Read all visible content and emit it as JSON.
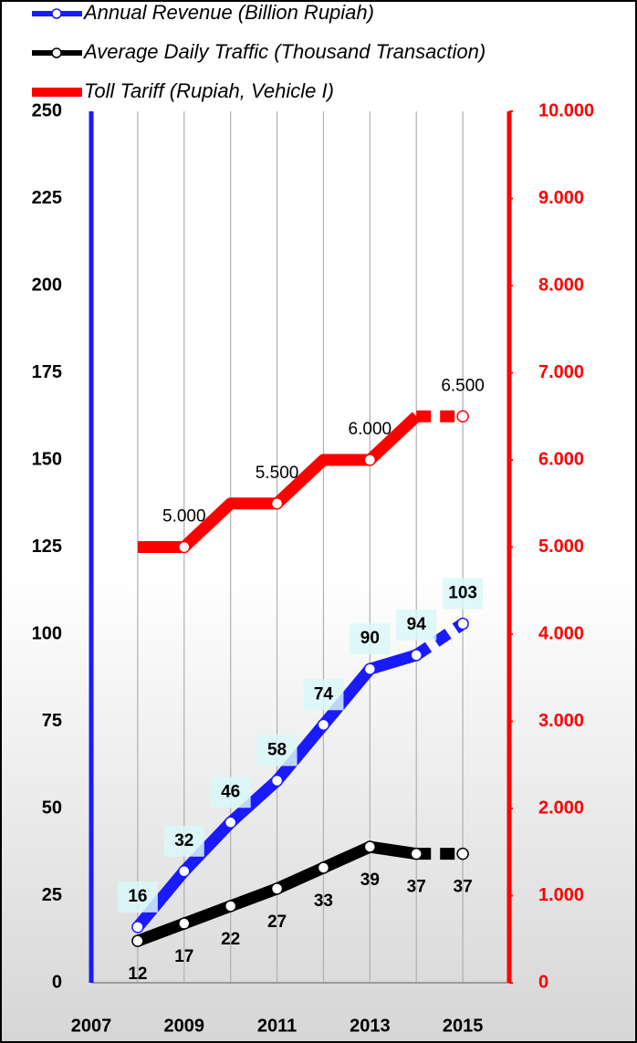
{
  "chart_data": {
    "type": "line",
    "x": [
      2008,
      2009,
      2010,
      2011,
      2012,
      2013,
      2014,
      2015
    ],
    "series": [
      {
        "name": "Annual Revenue (Billion Rupiah)",
        "color": "#1a1aff",
        "values": [
          16,
          32,
          46,
          58,
          74,
          90,
          94,
          103
        ]
      },
      {
        "name": "Average Daily Traffic (Thousand Transaction)",
        "color": "#000000",
        "values": [
          12,
          17,
          22,
          27,
          33,
          39,
          37,
          37
        ]
      },
      {
        "name": "Toll Tariff (Rupiah, Vehicle I)",
        "color": "#ff0000",
        "axis": "y2",
        "values": [
          5000,
          5000,
          5500,
          5500,
          6000,
          6000,
          6500,
          6500
        ],
        "value_labels": [
          null,
          "5.000",
          null,
          "5.500",
          null,
          "6.000",
          null,
          "6.500"
        ]
      }
    ],
    "xlim": [
      2007,
      2016
    ],
    "xticks": [
      2007,
      2009,
      2011,
      2013,
      2015
    ],
    "xgrid_minor": [
      2008,
      2010,
      2012,
      2014,
      2016
    ],
    "ylim": [
      0,
      250
    ],
    "yticks": [
      0,
      25,
      50,
      75,
      100,
      125,
      150,
      175,
      200,
      225,
      250
    ],
    "y2lim": [
      0,
      10000
    ],
    "y2ticks": [
      {
        "value": 0,
        "label": "0"
      },
      {
        "value": 1000,
        "label": "1.000"
      },
      {
        "value": 2000,
        "label": "2.000"
      },
      {
        "value": 3000,
        "label": "3.000"
      },
      {
        "value": 4000,
        "label": "4.000"
      },
      {
        "value": 5000,
        "label": "5.000"
      },
      {
        "value": 6000,
        "label": "6.000"
      },
      {
        "value": 7000,
        "label": "7.000"
      },
      {
        "value": 8000,
        "label": "8.000"
      },
      {
        "value": 9000,
        "label": "9.000"
      },
      {
        "value": 10000,
        "label": "10.000"
      }
    ],
    "grid": true,
    "legend": "top-left"
  }
}
